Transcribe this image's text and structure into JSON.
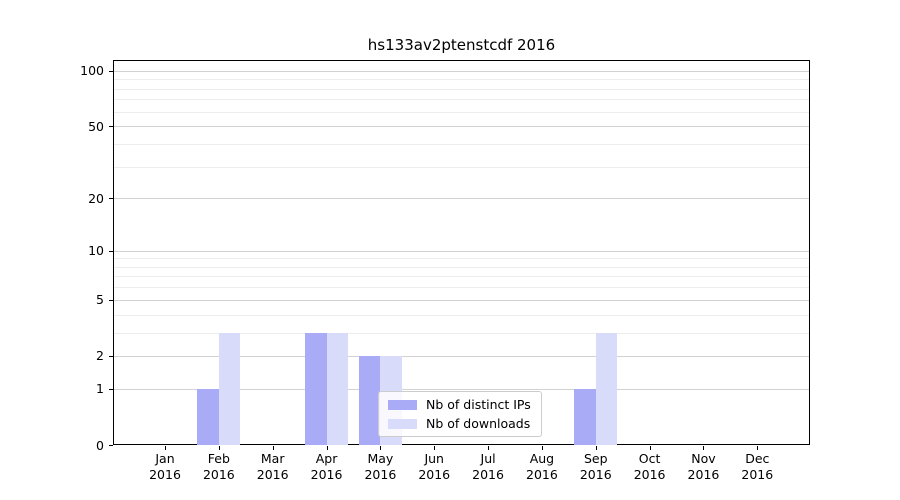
{
  "title": "hs133av2ptenstcdf 2016",
  "chart_data": {
    "type": "bar",
    "title": "hs133av2ptenstcdf 2016",
    "categories": [
      "Jan 2016",
      "Feb 2016",
      "Mar 2016",
      "Apr 2016",
      "May 2016",
      "Jun 2016",
      "Jul 2016",
      "Aug 2016",
      "Sep 2016",
      "Oct 2016",
      "Nov 2016",
      "Dec 2016"
    ],
    "series": [
      {
        "name": "Nb of distinct IPs",
        "color": "#a9abf6",
        "values": [
          0,
          1,
          0,
          3,
          2,
          0,
          0,
          0,
          1,
          0,
          0,
          0
        ]
      },
      {
        "name": "Nb of downloads",
        "color": "#d9dbfa",
        "values": [
          0,
          3,
          0,
          3,
          2,
          0,
          0,
          0,
          3,
          0,
          0,
          0
        ]
      }
    ],
    "xlabel": "",
    "ylabel": "",
    "y_scale": "log10(1+x)",
    "ylim": [
      0,
      115
    ],
    "y_major_ticks": [
      0,
      1,
      2,
      5,
      10,
      20,
      50,
      100
    ],
    "y_minor_ticks": [
      3,
      4,
      6,
      7,
      8,
      9,
      30,
      40,
      60,
      70,
      80,
      90
    ],
    "grid": "horizontal major + minor",
    "legend_position": "inside lower-center"
  },
  "colors": {
    "background": "#ffffff",
    "spine": "#000000",
    "grid_major": "#d2d2d2",
    "grid_minor": "#ededed",
    "text": "#000000",
    "legend_border": "#cccccc"
  }
}
